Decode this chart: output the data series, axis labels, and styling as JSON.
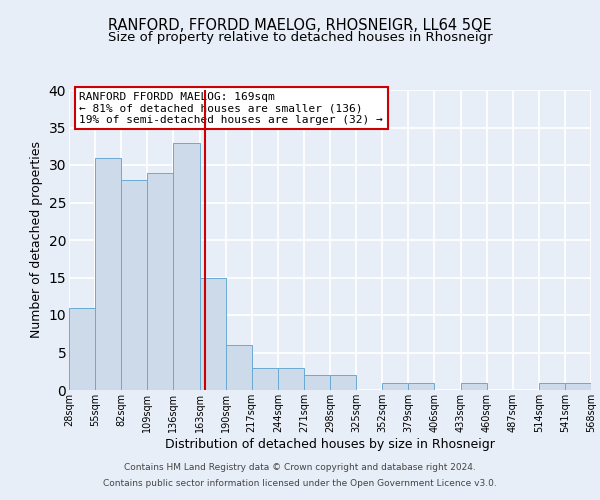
{
  "title": "RANFORD, FFORDD MAELOG, RHOSNEIGR, LL64 5QE",
  "subtitle": "Size of property relative to detached houses in Rhosneigr",
  "xlabel": "Distribution of detached houses by size in Rhosneigr",
  "ylabel": "Number of detached properties",
  "bar_edges": [
    28,
    55,
    82,
    109,
    136,
    163,
    190,
    217,
    244,
    271,
    298,
    325,
    352,
    379,
    406,
    433,
    460,
    487,
    514,
    541,
    568
  ],
  "bar_heights": [
    11,
    31,
    28,
    29,
    33,
    15,
    6,
    3,
    3,
    2,
    2,
    0,
    1,
    1,
    0,
    1,
    0,
    0,
    1,
    1
  ],
  "bar_color": "#ccdaea",
  "bar_edge_color": "#6aaad4",
  "highlight_x": 169,
  "annotation_title": "RANFORD FFORDD MAELOG: 169sqm",
  "annotation_line1": "← 81% of detached houses are smaller (136)",
  "annotation_line2": "19% of semi-detached houses are larger (32) →",
  "annotation_box_color": "#ffffff",
  "annotation_box_edge": "#cc0000",
  "vline_color": "#cc0000",
  "ylim": [
    0,
    40
  ],
  "xlim": [
    28,
    568
  ],
  "footer1": "Contains HM Land Registry data © Crown copyright and database right 2024.",
  "footer2": "Contains public sector information licensed under the Open Government Licence v3.0.",
  "background_color": "#e8eef8",
  "axes_background": "#e8eef8",
  "grid_color": "#ffffff",
  "title_fontsize": 10.5,
  "subtitle_fontsize": 9.5,
  "label_fontsize": 9,
  "tick_fontsize": 7,
  "footer_fontsize": 6.5,
  "annot_fontsize": 8
}
